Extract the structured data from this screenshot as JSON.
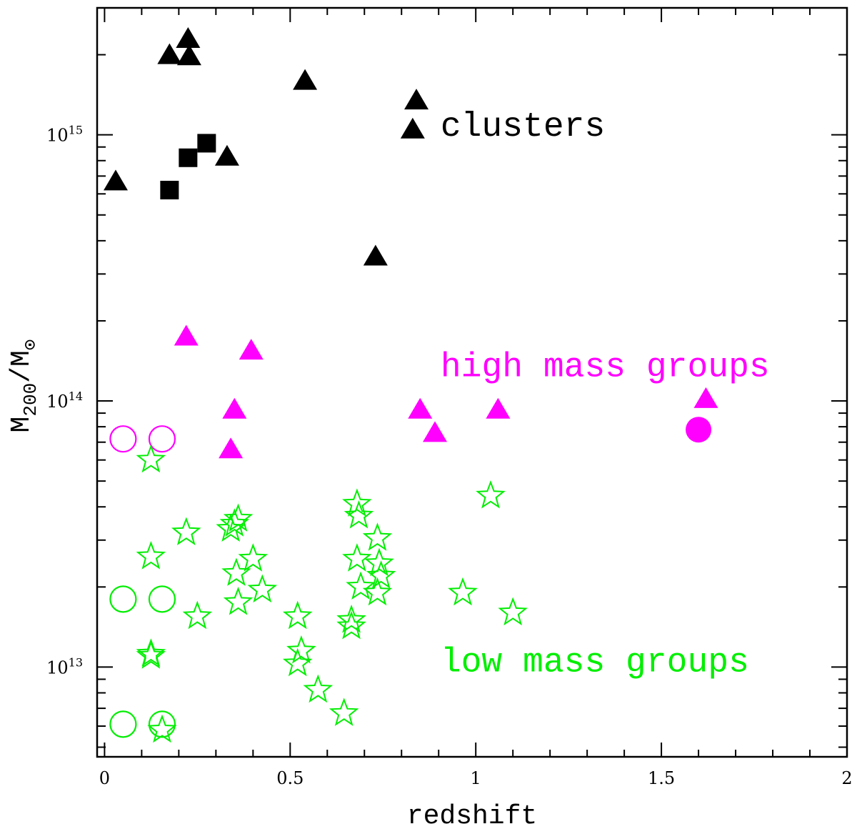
{
  "chart_data": {
    "type": "scatter",
    "xlabel": "redshift",
    "ylabel": "M200/M⊙",
    "ylabel_parts": {
      "main": "M",
      "sub": "200",
      "slash": "/M",
      "sub2": "⊙"
    },
    "xlim": [
      -0.02,
      2.0
    ],
    "ylim": [
      4600000000000.0,
      3000000000000000.0
    ],
    "yscale": "log",
    "x_ticks": [
      {
        "value": 0,
        "label": "0"
      },
      {
        "value": 0.5,
        "label": "0.5"
      },
      {
        "value": 1,
        "label": "1"
      },
      {
        "value": 1.5,
        "label": "1.5"
      },
      {
        "value": 2,
        "label": "2"
      }
    ],
    "y_major_ticks": [
      {
        "value": 10000000000000.0,
        "base": "10",
        "exp": "13"
      },
      {
        "value": 100000000000000.0,
        "base": "10",
        "exp": "14"
      },
      {
        "value": 1000000000000000.0,
        "base": "10",
        "exp": "15"
      }
    ],
    "annotations": [
      {
        "text": "clusters",
        "x": 0.905,
        "y": 1080000000000000.0,
        "color": "#000000"
      },
      {
        "text": "high mass groups",
        "x": 0.905,
        "y": 135000000000000.0,
        "color": "#ff00ff"
      },
      {
        "text": "low mass groups",
        "x": 0.905,
        "y": 10500000000000.0,
        "color": "#00ee00"
      }
    ],
    "series": [
      {
        "marker": "triangle-filled",
        "color": "#000000",
        "points": [
          [
            0.03,
            670000000000000.0
          ],
          [
            0.175,
            2000000000000000.0
          ],
          [
            0.225,
            2300000000000000.0
          ],
          [
            0.228,
            1980000000000000.0
          ],
          [
            0.33,
            830000000000000.0
          ],
          [
            0.54,
            1600000000000000.0
          ],
          [
            0.73,
            350000000000000.0
          ],
          [
            0.84,
            1350000000000000.0
          ],
          [
            0.83,
            1050000000000000.0
          ]
        ]
      },
      {
        "marker": "square-filled",
        "color": "#000000",
        "points": [
          [
            0.175,
            620000000000000.0
          ],
          [
            0.225,
            820000000000000.0
          ],
          [
            0.275,
            930000000000000.0
          ]
        ]
      },
      {
        "marker": "triangle-filled",
        "color": "#ff00ff",
        "points": [
          [
            0.22,
            175000000000000.0
          ],
          [
            0.395,
            155000000000000.0
          ],
          [
            0.35,
            93000000000000.0
          ],
          [
            0.34,
            66000000000000.0
          ],
          [
            0.85,
            93000000000000.0
          ],
          [
            0.89,
            76000000000000.0
          ],
          [
            1.06,
            93000000000000.0
          ],
          [
            1.62,
            102000000000000.0
          ]
        ]
      },
      {
        "marker": "circle-filled",
        "color": "#ff00ff",
        "points": [
          [
            1.6,
            78000000000000.0
          ]
        ]
      },
      {
        "marker": "circle-open",
        "color": "#ff00ff",
        "points": [
          [
            0.05,
            72000000000000.0
          ],
          [
            0.155,
            72000000000000.0
          ]
        ]
      },
      {
        "marker": "circle-open",
        "color": "#00ee00",
        "points": [
          [
            0.05,
            18000000000000.0
          ],
          [
            0.155,
            18000000000000.0
          ],
          [
            0.05,
            6100000000000.0
          ],
          [
            0.155,
            6100000000000.0
          ]
        ]
      },
      {
        "marker": "star-open",
        "color": "#00ee00",
        "points": [
          [
            0.125,
            60000000000000.0
          ],
          [
            0.125,
            26000000000000.0
          ],
          [
            0.125,
            11200000000000.0
          ],
          [
            0.125,
            11000000000000.0
          ],
          [
            0.155,
            5800000000000.0
          ],
          [
            0.22,
            32000000000000.0
          ],
          [
            0.25,
            15500000000000.0
          ],
          [
            0.34,
            33000000000000.0
          ],
          [
            0.35,
            34500000000000.0
          ],
          [
            0.36,
            36000000000000.0
          ],
          [
            0.355,
            22500000000000.0
          ],
          [
            0.36,
            17500000000000.0
          ],
          [
            0.4,
            25500000000000.0
          ],
          [
            0.425,
            19500000000000.0
          ],
          [
            0.52,
            15500000000000.0
          ],
          [
            0.53,
            11500000000000.0
          ],
          [
            0.52,
            10300000000000.0
          ],
          [
            0.575,
            8200000000000.0
          ],
          [
            0.645,
            6700000000000.0
          ],
          [
            0.665,
            15000000000000.0
          ],
          [
            0.665,
            14200000000000.0
          ],
          [
            0.68,
            41000000000000.0
          ],
          [
            0.685,
            37000000000000.0
          ],
          [
            0.68,
            25500000000000.0
          ],
          [
            0.69,
            20000000000000.0
          ],
          [
            0.735,
            30500000000000.0
          ],
          [
            0.74,
            24500000000000.0
          ],
          [
            0.745,
            22000000000000.0
          ],
          [
            0.735,
            19000000000000.0
          ],
          [
            0.965,
            19000000000000.0
          ],
          [
            1.04,
            44000000000000.0
          ],
          [
            1.1,
            16000000000000.0
          ]
        ]
      }
    ]
  }
}
